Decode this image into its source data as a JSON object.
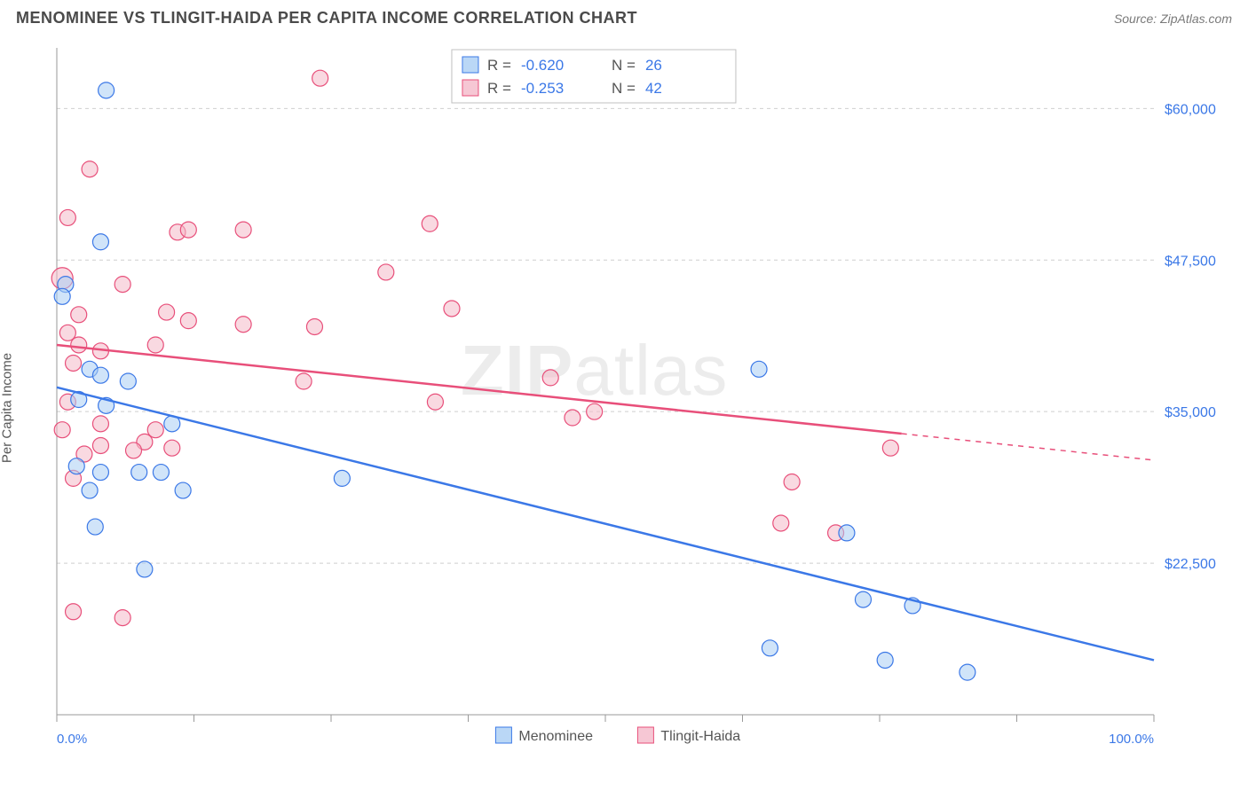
{
  "title": "MENOMINEE VS TLINGIT-HAIDA PER CAPITA INCOME CORRELATION CHART",
  "source": "Source: ZipAtlas.com",
  "ylabel": "Per Capita Income",
  "watermark_heavy": "ZIP",
  "watermark_light": "atlas",
  "legend_top": {
    "row1": {
      "r_label": "R =",
      "r_val": "-0.620",
      "n_label": "N =",
      "n_val": "26"
    },
    "row2": {
      "r_label": "R =",
      "r_val": "-0.253",
      "n_label": "N =",
      "n_val": "42"
    }
  },
  "legend_bottom": {
    "s1": "Menominee",
    "s2": "Tlingit-Haida"
  },
  "chart": {
    "type": "scatter",
    "xlim": [
      0,
      100
    ],
    "ylim": [
      10000,
      65000
    ],
    "x_min_label": "0.0%",
    "x_max_label": "100.0%",
    "xtick_positions": [
      0,
      12.5,
      25,
      37.5,
      50,
      62.5,
      75,
      87.5,
      100
    ],
    "ytick_values": [
      22500,
      35000,
      47500,
      60000
    ],
    "ytick_labels": [
      "$22,500",
      "$35,000",
      "$47,500",
      "$60,000"
    ],
    "background_color": "#ffffff",
    "grid_color": "#cfcfcf",
    "series": {
      "menominee": {
        "fill": "#a9cdf4",
        "stroke": "#3b78e7",
        "fill_opacity": 0.55,
        "marker_r": 9,
        "trend": {
          "x1": 0,
          "y1": 37000,
          "x2": 100,
          "y2": 14500,
          "dash_from_x": null
        },
        "points": [
          {
            "x": 4.5,
            "y": 61500
          },
          {
            "x": 4.0,
            "y": 49000
          },
          {
            "x": 0.8,
            "y": 45500
          },
          {
            "x": 0.5,
            "y": 44500
          },
          {
            "x": 3.0,
            "y": 38500
          },
          {
            "x": 4.0,
            "y": 38000
          },
          {
            "x": 6.5,
            "y": 37500
          },
          {
            "x": 2.0,
            "y": 36000
          },
          {
            "x": 4.5,
            "y": 35500
          },
          {
            "x": 10.5,
            "y": 34000
          },
          {
            "x": 1.8,
            "y": 30500
          },
          {
            "x": 4.0,
            "y": 30000
          },
          {
            "x": 7.5,
            "y": 30000
          },
          {
            "x": 9.5,
            "y": 30000
          },
          {
            "x": 3.0,
            "y": 28500
          },
          {
            "x": 11.5,
            "y": 28500
          },
          {
            "x": 26.0,
            "y": 29500
          },
          {
            "x": 3.5,
            "y": 25500
          },
          {
            "x": 8.0,
            "y": 22000
          },
          {
            "x": 64.0,
            "y": 38500
          },
          {
            "x": 72.0,
            "y": 25000
          },
          {
            "x": 73.5,
            "y": 19500
          },
          {
            "x": 78.0,
            "y": 19000
          },
          {
            "x": 65.0,
            "y": 15500
          },
          {
            "x": 75.5,
            "y": 14500
          },
          {
            "x": 83.0,
            "y": 13500
          }
        ]
      },
      "tlingit": {
        "fill": "#f4b9c9",
        "stroke": "#e84f7a",
        "fill_opacity": 0.55,
        "marker_r": 9,
        "trend": {
          "x1": 0,
          "y1": 40500,
          "x2": 100,
          "y2": 31000,
          "dash_from_x": 77
        },
        "points": [
          {
            "x": 0.5,
            "y": 46000,
            "r": 12
          },
          {
            "x": 24.0,
            "y": 62500
          },
          {
            "x": 3.0,
            "y": 55000
          },
          {
            "x": 1.0,
            "y": 51000
          },
          {
            "x": 11.0,
            "y": 49800
          },
          {
            "x": 12.0,
            "y": 50000
          },
          {
            "x": 17.0,
            "y": 50000
          },
          {
            "x": 34.0,
            "y": 50500
          },
          {
            "x": 30.0,
            "y": 46500
          },
          {
            "x": 36.0,
            "y": 43500
          },
          {
            "x": 6.0,
            "y": 45500
          },
          {
            "x": 10.0,
            "y": 43200
          },
          {
            "x": 12.0,
            "y": 42500
          },
          {
            "x": 17.0,
            "y": 42200
          },
          {
            "x": 23.5,
            "y": 42000
          },
          {
            "x": 1.0,
            "y": 41500
          },
          {
            "x": 2.0,
            "y": 40500
          },
          {
            "x": 1.5,
            "y": 39000
          },
          {
            "x": 4.0,
            "y": 40000
          },
          {
            "x": 9.0,
            "y": 40500
          },
          {
            "x": 1.0,
            "y": 35800
          },
          {
            "x": 22.5,
            "y": 37500
          },
          {
            "x": 45.0,
            "y": 37800
          },
          {
            "x": 34.5,
            "y": 35800
          },
          {
            "x": 4.0,
            "y": 34000
          },
          {
            "x": 0.5,
            "y": 33500
          },
          {
            "x": 9.0,
            "y": 33500
          },
          {
            "x": 8.0,
            "y": 32500
          },
          {
            "x": 4.0,
            "y": 32200
          },
          {
            "x": 7.0,
            "y": 31800
          },
          {
            "x": 10.5,
            "y": 32000
          },
          {
            "x": 2.5,
            "y": 31500
          },
          {
            "x": 1.5,
            "y": 29500
          },
          {
            "x": 47.0,
            "y": 34500
          },
          {
            "x": 49.0,
            "y": 35000
          },
          {
            "x": 76.0,
            "y": 32000
          },
          {
            "x": 66.0,
            "y": 25800
          },
          {
            "x": 71.0,
            "y": 25000
          },
          {
            "x": 67.0,
            "y": 29200
          },
          {
            "x": 6.0,
            "y": 18000
          },
          {
            "x": 1.5,
            "y": 18500
          },
          {
            "x": 2.0,
            "y": 43000
          }
        ]
      }
    }
  }
}
